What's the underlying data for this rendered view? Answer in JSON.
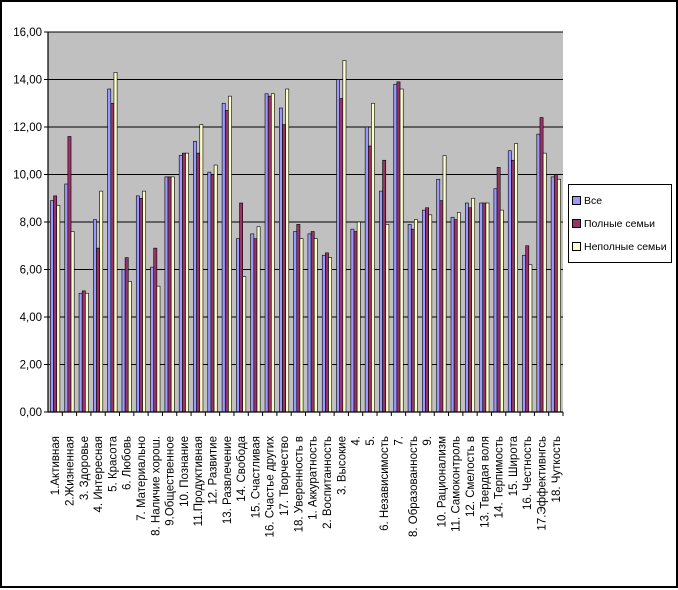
{
  "colors": {
    "series_1": "#9999FF",
    "series_2": "#993366",
    "series_3": "#FFFFCC",
    "plot_bg": "#C0C0C0",
    "gridline": "#000000"
  },
  "chart_data": {
    "type": "bar",
    "title": "",
    "xlabel": "",
    "ylabel": "",
    "ylim": [
      0,
      16
    ],
    "yticks": [
      "0,00",
      "2,00",
      "4,00",
      "6,00",
      "8,00",
      "10,00",
      "12,00",
      "14,00",
      "16,00"
    ],
    "grid": true,
    "legend_position": "right",
    "categories": [
      "1.Активная",
      "2.Жизненная",
      "3. Здоровье",
      "4. Интересная",
      "5. Красота",
      "6. Любовь",
      "7. Материально",
      "8. Наличие хорош.",
      "9.Общественное",
      "10. Познание",
      "11.Продуктивная",
      "12. Развитие",
      "13. Развлечение",
      "14. Свобода",
      "15. Счастливая",
      "16. Счастье других",
      "17. Творчество",
      "18. Уверенность в",
      "1. Аккуратность",
      "2. Воспитанность",
      "3. Высокие",
      "4.",
      "5.",
      "6. Независимость",
      "7.",
      "8. Образованность",
      "9.",
      "10. Рационализм",
      "11. Самоконтроль",
      "12. Смелость в",
      "13. Твердая воля",
      "14. Терпимость",
      "15. Широта",
      "16. Честность",
      "17.Эффективнгсь",
      "18. Чуткость"
    ],
    "series": [
      {
        "name": "Все",
        "values": [
          8.9,
          9.6,
          5.0,
          8.1,
          13.6,
          6.0,
          9.1,
          6.1,
          9.9,
          10.8,
          11.4,
          10.1,
          13.0,
          7.3,
          7.5,
          13.4,
          12.8,
          7.6,
          7.5,
          6.6,
          14.0,
          7.7,
          12.0,
          9.3,
          13.8,
          7.9,
          8.5,
          9.8,
          8.2,
          8.8,
          8.8,
          9.4,
          11.0,
          6.6,
          11.7,
          9.9
        ]
      },
      {
        "name": "Полные семьи",
        "values": [
          9.1,
          11.6,
          5.1,
          6.9,
          13.0,
          6.5,
          9.0,
          6.9,
          9.9,
          10.9,
          10.9,
          10.0,
          12.7,
          8.8,
          7.3,
          13.3,
          12.1,
          7.9,
          7.6,
          6.7,
          13.2,
          7.6,
          11.2,
          10.6,
          13.9,
          7.7,
          8.6,
          8.9,
          8.1,
          8.6,
          8.8,
          10.3,
          10.6,
          7.0,
          12.4,
          10.0
        ]
      },
      {
        "name": "Неполные семьи",
        "values": [
          8.7,
          7.6,
          5.0,
          9.3,
          14.3,
          5.5,
          9.3,
          5.3,
          9.9,
          10.9,
          12.1,
          10.4,
          13.3,
          5.7,
          7.8,
          13.4,
          13.6,
          7.3,
          7.3,
          6.5,
          14.8,
          8.0,
          13.0,
          7.9,
          13.6,
          8.1,
          8.3,
          10.8,
          8.4,
          9.0,
          8.8,
          8.5,
          11.3,
          6.2,
          10.9,
          9.8
        ]
      }
    ]
  }
}
